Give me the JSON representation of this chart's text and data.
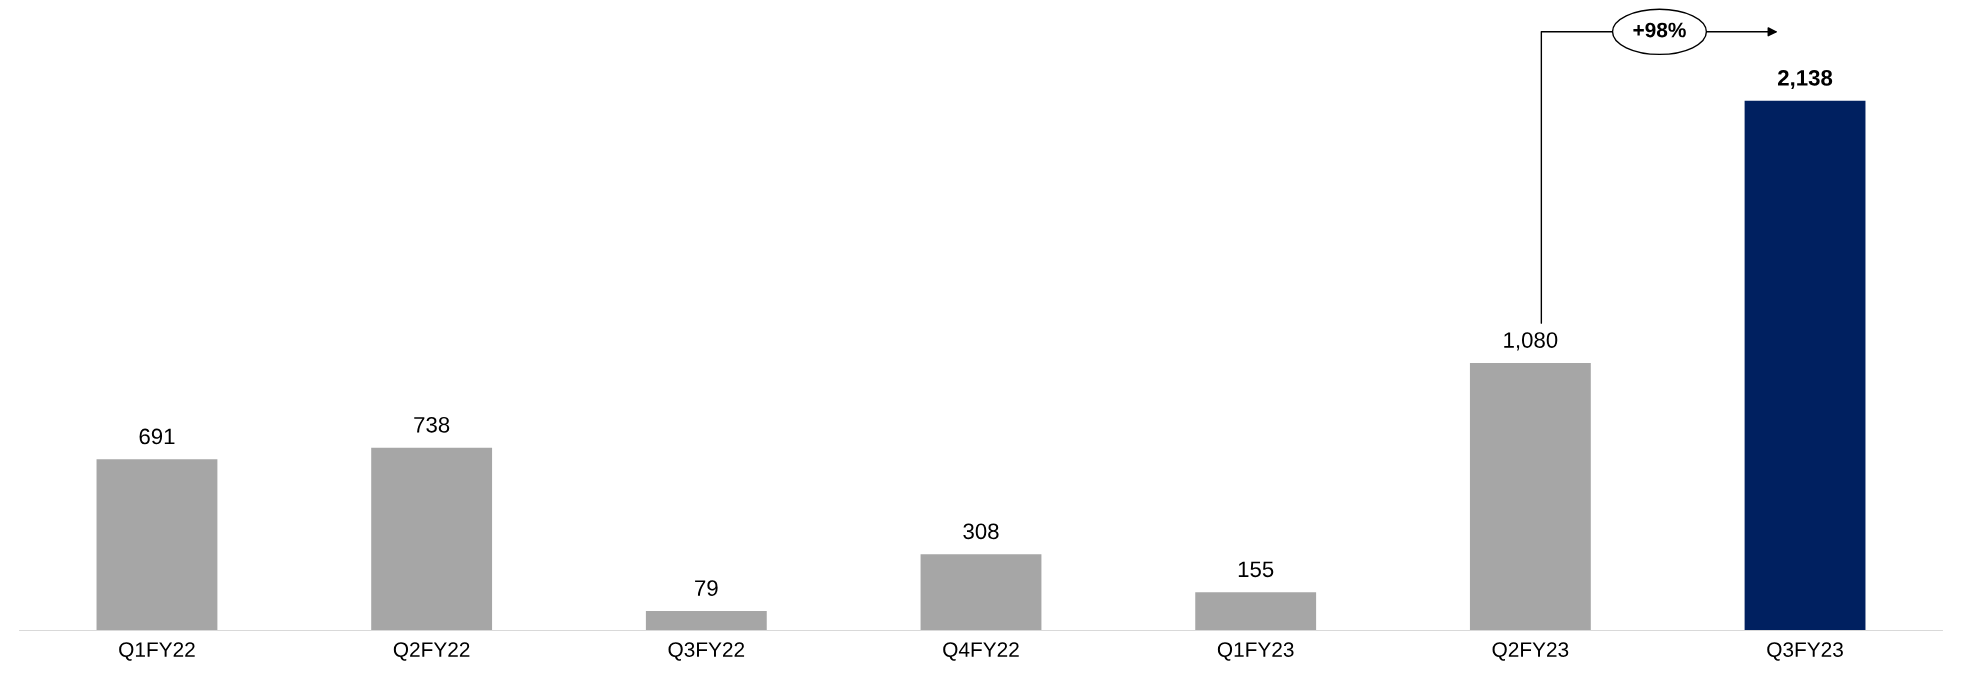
{
  "chart_data": {
    "type": "bar",
    "categories": [
      "Q1FY22",
      "Q2FY22",
      "Q3FY22",
      "Q4FY22",
      "Q1FY23",
      "Q2FY23",
      "Q3FY23"
    ],
    "values": [
      691,
      738,
      79,
      308,
      155,
      1080,
      2138
    ],
    "value_labels": [
      "691",
      "738",
      "79",
      "308",
      "155",
      "1,080",
      "2,138"
    ],
    "colors": [
      "#a6a6a6",
      "#a6a6a6",
      "#a6a6a6",
      "#a6a6a6",
      "#a6a6a6",
      "#a6a6a6",
      "#002060"
    ],
    "annotations": [
      "+98%"
    ],
    "grid": false,
    "legend": false
  }
}
